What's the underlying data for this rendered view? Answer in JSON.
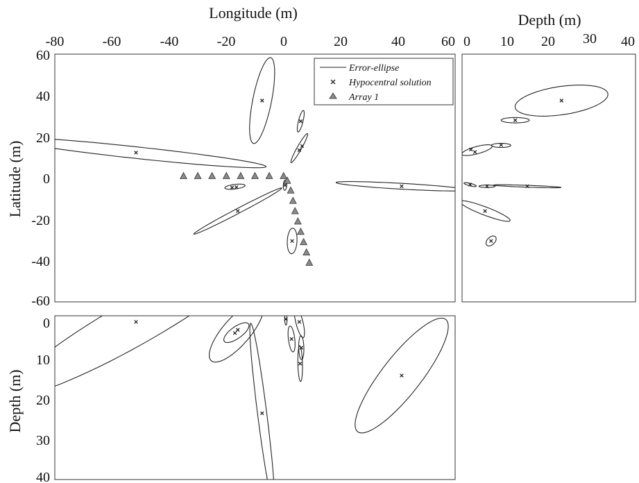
{
  "chart_data": [
    {
      "panel": "map",
      "type": "scatter",
      "xlabel": "Longitude (m)",
      "ylabel": "Latitude (m)",
      "xlim": [
        -80,
        60
      ],
      "ylim": [
        -60,
        60
      ],
      "xticks": [
        "-80",
        "-60",
        "-40",
        "-20",
        "0",
        "20",
        "40",
        "60"
      ],
      "yticks": [
        "60",
        "40",
        "20",
        "0",
        "-20",
        "-40",
        "-60"
      ],
      "legend": {
        "position": "top-right",
        "entries": [
          {
            "label": "Error-ellipse",
            "marker": "line"
          },
          {
            "label": "Hypocentral solution",
            "marker": "x"
          },
          {
            "label": "Array 1",
            "marker": "triangle"
          }
        ]
      },
      "hypocentral_solutions": [
        {
          "x": -51.6,
          "y": 12.3
        },
        {
          "x": -7.5,
          "y": 37.5
        },
        {
          "x": 6.0,
          "y": 27.5
        },
        {
          "x": 6.5,
          "y": 15.5
        },
        {
          "x": 5.5,
          "y": 13.5
        },
        {
          "x": 41.3,
          "y": -4.0
        },
        {
          "x": -16.5,
          "y": -4.4
        },
        {
          "x": -18.0,
          "y": -4.6
        },
        {
          "x": 0.5,
          "y": -3.5
        },
        {
          "x": -16.0,
          "y": -16.0
        },
        {
          "x": 3.0,
          "y": -30.5
        }
      ],
      "error_ellipses": [
        {
          "cx": -51.6,
          "cy": 12.3,
          "a": 46,
          "b": 2.8,
          "angle_deg": -8.5
        },
        {
          "cx": -7.5,
          "cy": 37.5,
          "a": 21,
          "b": 3.3,
          "angle_deg": 82
        },
        {
          "cx": 6.0,
          "cy": 27.5,
          "a": 5.3,
          "b": 0.8,
          "angle_deg": 80
        },
        {
          "cx": 5.5,
          "cy": 14.5,
          "a": 7.6,
          "b": 0.8,
          "angle_deg": 68
        },
        {
          "cx": 41.3,
          "cy": -4.0,
          "a": 23,
          "b": 1.4,
          "angle_deg": -4.5
        },
        {
          "cx": -17.0,
          "cy": -4.2,
          "a": 3.6,
          "b": 1.1,
          "angle_deg": 10
        },
        {
          "cx": 0.5,
          "cy": -3.5,
          "a": 2.5,
          "b": 0.6,
          "angle_deg": 88
        },
        {
          "cx": -16.0,
          "cy": -16.0,
          "a": 19,
          "b": 1.1,
          "angle_deg": 36
        },
        {
          "cx": 3.0,
          "cy": -30.5,
          "a": 6.2,
          "b": 1.7,
          "angle_deg": 88
        }
      ],
      "array_1": [
        {
          "x": -35,
          "y": 1
        },
        {
          "x": -30,
          "y": 1
        },
        {
          "x": -25,
          "y": 1
        },
        {
          "x": -20,
          "y": 1
        },
        {
          "x": -15,
          "y": 1
        },
        {
          "x": -10,
          "y": 1
        },
        {
          "x": -5,
          "y": 1
        },
        {
          "x": 0,
          "y": 1
        },
        {
          "x": 1.3,
          "y": -1.3
        },
        {
          "x": 2.5,
          "y": -6
        },
        {
          "x": 3.3,
          "y": -11
        },
        {
          "x": 4,
          "y": -16
        },
        {
          "x": 5,
          "y": -21
        },
        {
          "x": 6,
          "y": -26
        },
        {
          "x": 7,
          "y": -31
        },
        {
          "x": 8,
          "y": -36
        },
        {
          "x": 9,
          "y": -41
        }
      ]
    },
    {
      "panel": "depth-latitude",
      "type": "scatter",
      "xlabel": "Depth (m)",
      "xlim": [
        0,
        40
      ],
      "ylim": [
        -60,
        60
      ],
      "xticks": [
        "0",
        "10",
        "20",
        "30",
        "40"
      ],
      "hypocentral_solutions": [
        {
          "x": 23.5,
          "y": 37.5
        },
        {
          "x": 12,
          "y": 28
        },
        {
          "x": 1.0,
          "y": 13.8
        },
        {
          "x": 2.0,
          "y": 12.6
        },
        {
          "x": 8.5,
          "y": 16
        },
        {
          "x": 15,
          "y": -4
        },
        {
          "x": 0.8,
          "y": -3.2
        },
        {
          "x": 5,
          "y": -4
        },
        {
          "x": 4.5,
          "y": -16
        },
        {
          "x": 6,
          "y": -30.5
        }
      ],
      "error_ellipses": [
        {
          "cx": 23.5,
          "cy": 37.5,
          "a": 12.1,
          "b": 6.6,
          "angle_deg": 21
        },
        {
          "cx": 12,
          "cy": 28,
          "a": 3.5,
          "b": 1.3,
          "angle_deg": 0
        },
        {
          "cx": 2.5,
          "cy": 13.5,
          "a": 4.3,
          "b": 1.6,
          "angle_deg": 31
        },
        {
          "cx": 8.5,
          "cy": 15.8,
          "a": 2.4,
          "b": 1.0,
          "angle_deg": 0
        },
        {
          "cx": 15,
          "cy": -4,
          "a": 8.4,
          "b": 0.45,
          "angle_deg": -4
        },
        {
          "cx": 0.8,
          "cy": -3.2,
          "a": 1.7,
          "b": 0.55,
          "angle_deg": -28
        },
        {
          "cx": 5,
          "cy": -4,
          "a": 2.0,
          "b": 0.6,
          "angle_deg": 0
        },
        {
          "cx": 4.5,
          "cy": -16,
          "a": 7.8,
          "b": 1.7,
          "angle_deg": -38
        },
        {
          "cx": 6,
          "cy": -30.5,
          "a": 2.5,
          "b": 1.1,
          "angle_deg": 74
        }
      ]
    },
    {
      "panel": "longitude-depth",
      "type": "scatter",
      "ylabel": "Depth (m)",
      "xlim": [
        -80,
        60
      ],
      "ylim": [
        0,
        40
      ],
      "yticks": [
        "0",
        "10",
        "20",
        "30",
        "40"
      ],
      "hypocentral_solutions": [
        {
          "x": -51.6,
          "y": 0.5
        },
        {
          "x": -16.0,
          "y": 2.5
        },
        {
          "x": -17.0,
          "y": 3.3
        },
        {
          "x": 0.8,
          "y": -0.2
        },
        {
          "x": 5.5,
          "y": 0.5
        },
        {
          "x": 2.8,
          "y": 4.8
        },
        {
          "x": 6.2,
          "y": 7.0
        },
        {
          "x": 5.8,
          "y": 11.0
        },
        {
          "x": -7.5,
          "y": 23.5
        },
        {
          "x": 41.3,
          "y": 14.0
        }
      ],
      "error_ellipses": [
        {
          "cx": -51.6,
          "cy": 0.5,
          "a": 47,
          "b": 6.0,
          "angle_deg": -22
        },
        {
          "cx": -16.5,
          "cy": 3.0,
          "a": 11.5,
          "b": 4.0,
          "angle_deg": -37
        },
        {
          "cx": -16.5,
          "cy": 3.2,
          "a": 4.8,
          "b": 1.6,
          "angle_deg": -25
        },
        {
          "cx": 0.8,
          "cy": -0.2,
          "a": 1.5,
          "b": 0.4,
          "angle_deg": 88
        },
        {
          "cx": 5.5,
          "cy": 0.5,
          "a": 4.2,
          "b": 1.2,
          "angle_deg": 70
        },
        {
          "cx": 2.8,
          "cy": 4.8,
          "a": 3.3,
          "b": 1.1,
          "angle_deg": 80
        },
        {
          "cx": 6.2,
          "cy": 7.0,
          "a": 3.0,
          "b": 0.9,
          "angle_deg": 88
        },
        {
          "cx": 5.8,
          "cy": 11.0,
          "a": 4.5,
          "b": 0.8,
          "angle_deg": 88
        },
        {
          "cx": -7.5,
          "cy": 23.5,
          "a": 23,
          "b": 1.6,
          "angle_deg": 80
        },
        {
          "cx": 41.3,
          "cy": 14.0,
          "a": 21,
          "b": 5.8,
          "angle_deg": -41
        }
      ]
    }
  ]
}
